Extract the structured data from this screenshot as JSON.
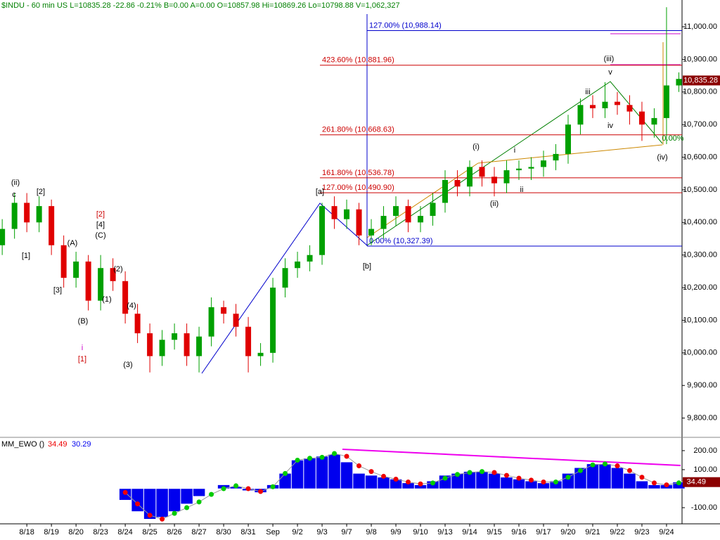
{
  "chart_data": {
    "type": "candlestick",
    "title": "$INDU - 60 min  US  L=10835.28  -22.86  -0.21%  B=0.00  A=0.00  O=10857.98  Hi=10869.26  Lo=10798.88  V=1,062,327",
    "up_color": "#00a000",
    "down_color": "#e00000",
    "x": [
      -1,
      -0.5,
      0,
      0.5,
      1,
      1.5,
      2,
      2.5,
      3,
      3.5,
      4,
      4.5,
      5,
      5.5,
      6,
      6.5,
      7,
      7.5,
      8,
      8.5,
      9,
      9.5,
      10,
      10.5,
      11,
      11.5,
      12,
      12.5,
      13,
      13.5,
      14,
      14.5,
      15,
      15.5,
      16,
      16.5,
      17,
      17.5,
      18,
      18.5,
      19,
      19.5,
      20,
      20.5,
      21,
      21.5,
      22,
      22.5,
      23,
      23.5,
      24,
      24.5,
      25,
      25.5,
      26,
      26.5
    ],
    "candles": [
      [
        10330,
        10410,
        10300,
        10380
      ],
      [
        10380,
        10490,
        10350,
        10460
      ],
      [
        10460,
        10490,
        10370,
        10400
      ],
      [
        10400,
        10480,
        10370,
        10450
      ],
      [
        10450,
        10470,
        10300,
        10330
      ],
      [
        10330,
        10360,
        10200,
        10230
      ],
      [
        10230,
        10310,
        10200,
        10280
      ],
      [
        10280,
        10300,
        10130,
        10160
      ],
      [
        10160,
        10300,
        10130,
        10260
      ],
      [
        10260,
        10290,
        10190,
        10220
      ],
      [
        10220,
        10250,
        10090,
        10120
      ],
      [
        10120,
        10150,
        10030,
        10060
      ],
      [
        10060,
        10090,
        9940,
        9990
      ],
      [
        9990,
        10070,
        9960,
        10040
      ],
      [
        10040,
        10090,
        10010,
        10060
      ],
      [
        10060,
        10090,
        9960,
        9990
      ],
      [
        9990,
        10080,
        9940,
        10050
      ],
      [
        10050,
        10170,
        10020,
        10140
      ],
      [
        10140,
        10160,
        10090,
        10120
      ],
      [
        10120,
        10150,
        10050,
        10080
      ],
      [
        10080,
        10110,
        9940,
        9990
      ],
      [
        9990,
        10030,
        9960,
        10000
      ],
      [
        10000,
        10230,
        9970,
        10200
      ],
      [
        10200,
        10290,
        10170,
        10260
      ],
      [
        10260,
        10310,
        10230,
        10280
      ],
      [
        10280,
        10330,
        10250,
        10300
      ],
      [
        10300,
        10460,
        10270,
        10450
      ],
      [
        10450,
        10480,
        10380,
        10410
      ],
      [
        10410,
        10470,
        10380,
        10440
      ],
      [
        10440,
        10460,
        10330,
        10360
      ],
      [
        10360,
        10410,
        10330,
        10380
      ],
      [
        10380,
        10450,
        10350,
        10420
      ],
      [
        10420,
        10480,
        10390,
        10450
      ],
      [
        10450,
        10470,
        10370,
        10400
      ],
      [
        10400,
        10450,
        10370,
        10420
      ],
      [
        10420,
        10490,
        10390,
        10460
      ],
      [
        10460,
        10560,
        10430,
        10530
      ],
      [
        10530,
        10560,
        10480,
        10510
      ],
      [
        10510,
        10590,
        10480,
        10570
      ],
      [
        10570,
        10590,
        10510,
        10540
      ],
      [
        10540,
        10570,
        10480,
        10520
      ],
      [
        10520,
        10590,
        10490,
        10560
      ],
      [
        10560,
        10590,
        10530,
        10565
      ],
      [
        10565,
        10600,
        10530,
        10570
      ],
      [
        10570,
        10620,
        10540,
        10590
      ],
      [
        10590,
        10640,
        10560,
        10610
      ],
      [
        10610,
        10730,
        10580,
        10700
      ],
      [
        10700,
        10780,
        10670,
        10760
      ],
      [
        10760,
        10790,
        10720,
        10750
      ],
      [
        10750,
        10830,
        10720,
        10770
      ],
      [
        10770,
        10800,
        10730,
        10760
      ],
      [
        10760,
        10790,
        10700,
        10740
      ],
      [
        10740,
        10770,
        10650,
        10700
      ],
      [
        10700,
        10750,
        10660,
        10720
      ],
      [
        10720,
        11060,
        10640,
        10820
      ],
      [
        10820,
        10860,
        10800,
        10840
      ]
    ],
    "xlim": [
      -1.09,
      26.63
    ],
    "xticks": [
      {
        "value": 0,
        "label": "8/18"
      },
      {
        "value": 1,
        "label": "8/19"
      },
      {
        "value": 2,
        "label": "8/20"
      },
      {
        "value": 3,
        "label": "8/23"
      },
      {
        "value": 4,
        "label": "8/24"
      },
      {
        "value": 5,
        "label": "8/25"
      },
      {
        "value": 6,
        "label": "8/26"
      },
      {
        "value": 7,
        "label": "8/27"
      },
      {
        "value": 8,
        "label": "8/30"
      },
      {
        "value": 9,
        "label": "8/31"
      },
      {
        "value": 10,
        "label": "Sep"
      },
      {
        "value": 11,
        "label": "9/2"
      },
      {
        "value": 12,
        "label": "9/3"
      },
      {
        "value": 13,
        "label": "9/7"
      },
      {
        "value": 14,
        "label": "9/8"
      },
      {
        "value": 15,
        "label": "9/9"
      },
      {
        "value": 16,
        "label": "9/10"
      },
      {
        "value": 17,
        "label": "9/13"
      },
      {
        "value": 18,
        "label": "9/14"
      },
      {
        "value": 19,
        "label": "9/15"
      },
      {
        "value": 20,
        "label": "9/16"
      },
      {
        "value": 21,
        "label": "9/17"
      },
      {
        "value": 22,
        "label": "9/20"
      },
      {
        "value": 23,
        "label": "9/21"
      },
      {
        "value": 24,
        "label": "9/22"
      },
      {
        "value": 25,
        "label": "9/23"
      },
      {
        "value": 26,
        "label": "9/24"
      }
    ],
    "ylim": [
      9756,
      11082
    ],
    "yticks": [
      {
        "value": 11000,
        "label": "11,000.00"
      },
      {
        "value": 10900,
        "label": "10,900.00"
      },
      {
        "value": 10800,
        "label": "10,800.00"
      },
      {
        "value": 10700,
        "label": "10,700.00"
      },
      {
        "value": 10600,
        "label": "10,600.00"
      },
      {
        "value": 10500,
        "label": "10,500.00"
      },
      {
        "value": 10400,
        "label": "10,400.00"
      },
      {
        "value": 10300,
        "label": "10,300.00"
      },
      {
        "value": 10200,
        "label": "10,200.00"
      },
      {
        "value": 10100,
        "label": "10,100.00"
      },
      {
        "value": 10000,
        "label": "10,000.00"
      },
      {
        "value": 9900,
        "label": "9,900.00"
      },
      {
        "value": 9800,
        "label": "9,800.00"
      }
    ],
    "last_price": {
      "value": 10835.28,
      "label": "10,835.28"
    },
    "levels": [
      {
        "label": "127.00% (10,988.14)",
        "value": 10988.14,
        "color": "#0000cc"
      },
      {
        "label": "423.60% (10,881.96)",
        "value": 10881.96,
        "color": "#cc0000"
      },
      {
        "label": "261.80% (10,668.63)",
        "value": 10668.63,
        "color": "#cc0000"
      },
      {
        "label": "161.80% (10,536.78)",
        "value": 10536.78,
        "color": "#cc0000"
      },
      {
        "label": "127.00% (10,490.90)",
        "value": 10490.9,
        "color": "#cc0000"
      },
      {
        "label": "0.00% (10,327.39)",
        "value": 10327.39,
        "color": "#0000cc"
      }
    ],
    "wave_labels": [
      {
        "text": "(ii)",
        "color": "#000"
      },
      {
        "text": "c",
        "color": "#000"
      },
      {
        "text": "[2]",
        "color": "#000"
      },
      {
        "text": "[1]",
        "color": "#000"
      },
      {
        "text": "(A)",
        "color": "#000"
      },
      {
        "text": "[3]",
        "color": "#000"
      },
      {
        "text": "(B)",
        "color": "#000"
      },
      {
        "text": "[2]",
        "color": "#cc0000"
      },
      {
        "text": "[4]",
        "color": "#000"
      },
      {
        "text": "(C)",
        "color": "#000"
      },
      {
        "text": "(2)",
        "color": "#000"
      },
      {
        "text": "(1)",
        "color": "#000"
      },
      {
        "text": "(4)",
        "color": "#000"
      },
      {
        "text": "i",
        "color": "#cc00cc"
      },
      {
        "text": "[1]",
        "color": "#cc0000"
      },
      {
        "text": "(3)",
        "color": "#000"
      },
      {
        "text": "[a]",
        "color": "#000"
      },
      {
        "text": "[b]",
        "color": "#000"
      },
      {
        "text": "(i)",
        "color": "#000"
      },
      {
        "text": "i",
        "color": "#000"
      },
      {
        "text": "(ii)",
        "color": "#000"
      },
      {
        "text": "ii",
        "color": "#000"
      },
      {
        "text": "iii",
        "color": "#000"
      },
      {
        "text": "v",
        "color": "#000"
      },
      {
        "text": "(iii)",
        "color": "#000"
      },
      {
        "text": "iv",
        "color": "#000"
      },
      {
        "text": "(iv)",
        "color": "#000"
      },
      {
        "text": "0.00%",
        "color": "#008000"
      }
    ],
    "indicator": {
      "name": "MM_EWO ()",
      "ylim": [
        -185,
        270
      ],
      "yticks": [
        {
          "value": 200,
          "label": "200.00"
        },
        {
          "value": 100,
          "label": "100.00"
        },
        {
          "value": -100,
          "label": "-100.00"
        }
      ],
      "x": [
        4,
        4.5,
        5,
        5.5,
        6,
        6.5,
        7,
        7.5,
        8,
        8.5,
        9,
        9.5,
        10,
        10.5,
        11,
        11.5,
        12,
        12.5,
        13,
        13.5,
        14,
        14.5,
        15,
        15.5,
        16,
        16.5,
        17,
        17.5,
        18,
        18.5,
        19,
        19.5,
        20,
        20.5,
        21,
        21.5,
        22,
        22.5,
        23,
        23.5,
        24,
        24.5,
        25,
        25.5,
        26,
        26.5
      ],
      "series": [
        {
          "name": "34.49",
          "color": "#0000ee",
          "values": [
            -60,
            -120,
            -160,
            -150,
            -120,
            -80,
            -40,
            0,
            20,
            10,
            -10,
            -20,
            20,
            80,
            150,
            160,
            170,
            180,
            140,
            80,
            70,
            60,
            50,
            30,
            20,
            40,
            70,
            80,
            90,
            90,
            80,
            60,
            50,
            40,
            30,
            40,
            80,
            110,
            130,
            130,
            110,
            80,
            40,
            20,
            20,
            34.49
          ]
        },
        {
          "name": "30.29",
          "color": "#ee0000",
          "up_color": "#00cc00",
          "values": [
            -20,
            -80,
            -140,
            -160,
            -130,
            -100,
            -70,
            -30,
            0,
            15,
            0,
            -15,
            10,
            80,
            150,
            160,
            165,
            185,
            170,
            120,
            90,
            65,
            50,
            35,
            25,
            30,
            55,
            75,
            85,
            90,
            85,
            70,
            55,
            45,
            35,
            35,
            60,
            95,
            125,
            130,
            120,
            95,
            60,
            30,
            20,
            30.29
          ]
        }
      ],
      "last": {
        "value": 34.49,
        "label": "34.49"
      }
    }
  }
}
